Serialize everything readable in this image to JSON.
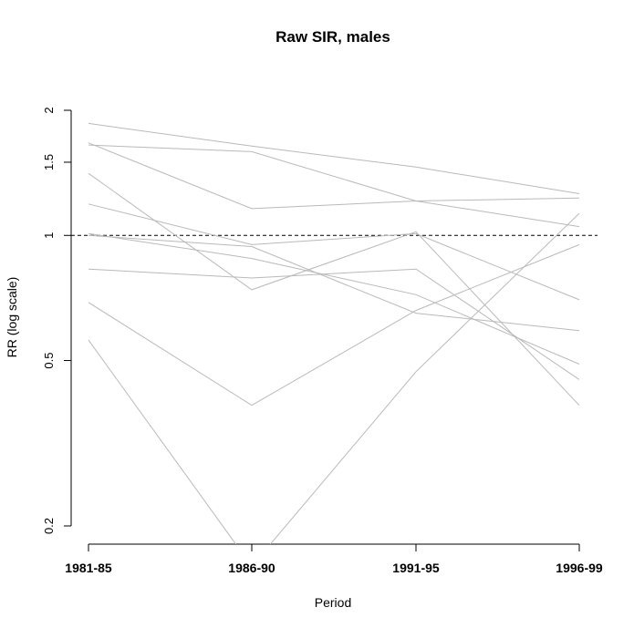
{
  "chart_data": {
    "type": "line",
    "title": "Raw SIR, males",
    "xlabel": "Period",
    "ylabel": "RR (log scale)",
    "y_scale": "log",
    "categories": [
      "1981-85",
      "1986-90",
      "1991-95",
      "1996-99"
    ],
    "y_ticks": [
      0.2,
      0.5,
      1,
      1.5,
      2
    ],
    "y_tick_labels": [
      "0.2",
      "0.5",
      "1",
      "1.5",
      "2"
    ],
    "ylim": [
      0.18,
      2.0
    ],
    "reference_line": {
      "value": 1,
      "style": "dashed",
      "color": "#000000"
    },
    "line_color": "#b9b9b9",
    "series": [
      {
        "values": [
          1.86,
          1.64,
          1.46,
          1.26
        ]
      },
      {
        "values": [
          1.65,
          1.59,
          1.21,
          1.23
        ]
      },
      {
        "values": [
          1.67,
          1.16,
          1.21,
          1.05
        ]
      },
      {
        "values": [
          1.41,
          0.74,
          1.02,
          0.39
        ]
      },
      {
        "values": [
          1.19,
          0.95,
          1.01,
          0.7
        ]
      },
      {
        "values": [
          1.01,
          0.88,
          0.72,
          0.49
        ]
      },
      {
        "values": [
          1.0,
          0.94,
          0.65,
          0.59
        ]
      },
      {
        "values": [
          0.83,
          0.79,
          0.83,
          0.45
        ]
      },
      {
        "values": [
          0.69,
          0.39,
          0.66,
          0.95
        ]
      },
      {
        "values": [
          0.56,
          0.16,
          0.47,
          1.13
        ]
      }
    ]
  }
}
